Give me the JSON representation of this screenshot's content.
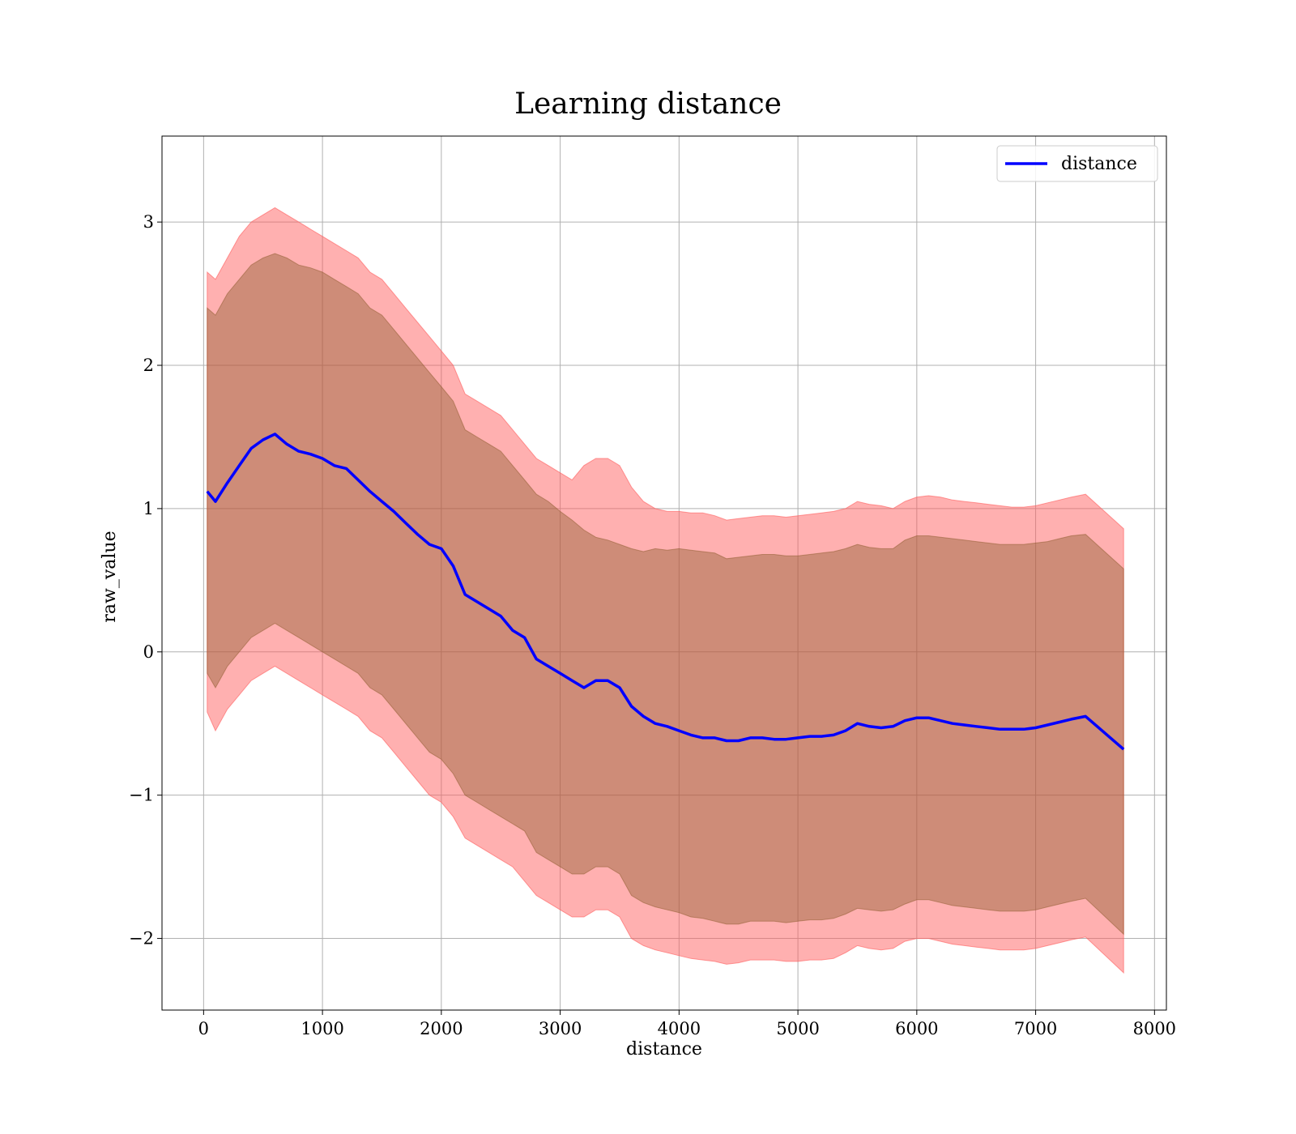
{
  "chart_data": {
    "type": "line",
    "title": "Learning distance",
    "xlabel": "distance",
    "ylabel": "raw_value",
    "xlim": [
      -350,
      8100
    ],
    "ylim": [
      -2.5,
      3.6
    ],
    "xticks": [
      0,
      1000,
      2000,
      3000,
      4000,
      5000,
      6000,
      7000,
      8000
    ],
    "xtick_labels": [
      "0",
      "1000",
      "2000",
      "3000",
      "4000",
      "5000",
      "6000",
      "7000",
      "8000"
    ],
    "yticks": [
      -2,
      -1,
      0,
      1,
      2,
      3
    ],
    "ytick_labels": [
      "−2",
      "−1",
      "0",
      "1",
      "2",
      "3"
    ],
    "grid": true,
    "legend": {
      "placement": "top-right",
      "entries": [
        "distance"
      ]
    },
    "colors": {
      "line": "#0000ff",
      "outer_band": "#ff5a5a",
      "inner_band": "#8b5a2b",
      "grid": "#b0b0b0"
    },
    "series": [
      {
        "name": "distance",
        "x": [
          30,
          100,
          200,
          300,
          400,
          500,
          600,
          700,
          800,
          900,
          1000,
          1100,
          1200,
          1300,
          1400,
          1500,
          1600,
          1700,
          1800,
          1900,
          2000,
          2100,
          2200,
          2300,
          2400,
          2500,
          2600,
          2700,
          2800,
          2900,
          3000,
          3100,
          3200,
          3300,
          3400,
          3500,
          3600,
          3700,
          3800,
          3900,
          4000,
          4100,
          4200,
          4300,
          4400,
          4500,
          4600,
          4700,
          4800,
          4900,
          5000,
          5100,
          5200,
          5300,
          5400,
          5500,
          5600,
          5700,
          5800,
          5900,
          6000,
          6100,
          6200,
          6300,
          6400,
          6500,
          6600,
          6700,
          6800,
          6900,
          7000,
          7100,
          7200,
          7300,
          7420,
          7740
        ],
        "y": [
          1.12,
          1.05,
          1.18,
          1.3,
          1.42,
          1.48,
          1.52,
          1.45,
          1.4,
          1.38,
          1.35,
          1.3,
          1.28,
          1.2,
          1.12,
          1.05,
          0.98,
          0.9,
          0.82,
          0.75,
          0.72,
          0.6,
          0.4,
          0.35,
          0.3,
          0.25,
          0.15,
          0.1,
          -0.05,
          -0.1,
          -0.15,
          -0.2,
          -0.25,
          -0.2,
          -0.2,
          -0.25,
          -0.38,
          -0.45,
          -0.5,
          -0.52,
          -0.55,
          -0.58,
          -0.6,
          -0.6,
          -0.62,
          -0.62,
          -0.6,
          -0.6,
          -0.61,
          -0.61,
          -0.6,
          -0.59,
          -0.59,
          -0.58,
          -0.55,
          -0.5,
          -0.52,
          -0.53,
          -0.52,
          -0.48,
          -0.46,
          -0.46,
          -0.48,
          -0.5,
          -0.51,
          -0.52,
          -0.53,
          -0.54,
          -0.54,
          -0.54,
          -0.53,
          -0.51,
          -0.49,
          -0.47,
          -0.45,
          -0.68
        ],
        "outer_upper": [
          2.65,
          2.6,
          2.75,
          2.9,
          3.0,
          3.05,
          3.1,
          3.05,
          3.0,
          2.95,
          2.9,
          2.85,
          2.8,
          2.75,
          2.65,
          2.6,
          2.5,
          2.4,
          2.3,
          2.2,
          2.1,
          2.0,
          1.8,
          1.75,
          1.7,
          1.65,
          1.55,
          1.45,
          1.35,
          1.3,
          1.25,
          1.2,
          1.3,
          1.35,
          1.35,
          1.3,
          1.15,
          1.05,
          1.0,
          0.98,
          0.98,
          0.97,
          0.97,
          0.95,
          0.92,
          0.93,
          0.94,
          0.95,
          0.95,
          0.94,
          0.95,
          0.96,
          0.97,
          0.98,
          1.0,
          1.05,
          1.03,
          1.02,
          1.0,
          1.05,
          1.08,
          1.09,
          1.08,
          1.06,
          1.05,
          1.04,
          1.03,
          1.02,
          1.01,
          1.01,
          1.02,
          1.04,
          1.06,
          1.08,
          1.1,
          0.86
        ],
        "inner_upper": [
          2.4,
          2.35,
          2.5,
          2.6,
          2.7,
          2.75,
          2.78,
          2.75,
          2.7,
          2.68,
          2.65,
          2.6,
          2.55,
          2.5,
          2.4,
          2.35,
          2.25,
          2.15,
          2.05,
          1.95,
          1.85,
          1.75,
          1.55,
          1.5,
          1.45,
          1.4,
          1.3,
          1.2,
          1.1,
          1.05,
          0.98,
          0.92,
          0.85,
          0.8,
          0.78,
          0.75,
          0.72,
          0.7,
          0.72,
          0.71,
          0.72,
          0.71,
          0.7,
          0.69,
          0.65,
          0.66,
          0.67,
          0.68,
          0.68,
          0.67,
          0.67,
          0.68,
          0.69,
          0.7,
          0.72,
          0.75,
          0.73,
          0.72,
          0.72,
          0.78,
          0.81,
          0.81,
          0.8,
          0.79,
          0.78,
          0.77,
          0.76,
          0.75,
          0.75,
          0.75,
          0.76,
          0.77,
          0.79,
          0.81,
          0.82,
          0.58
        ],
        "inner_lower": [
          -0.15,
          -0.25,
          -0.1,
          0.0,
          0.1,
          0.15,
          0.2,
          0.15,
          0.1,
          0.05,
          0.0,
          -0.05,
          -0.1,
          -0.15,
          -0.25,
          -0.3,
          -0.4,
          -0.5,
          -0.6,
          -0.7,
          -0.75,
          -0.85,
          -1.0,
          -1.05,
          -1.1,
          -1.15,
          -1.2,
          -1.25,
          -1.4,
          -1.45,
          -1.5,
          -1.55,
          -1.55,
          -1.5,
          -1.5,
          -1.55,
          -1.7,
          -1.75,
          -1.78,
          -1.8,
          -1.82,
          -1.85,
          -1.86,
          -1.88,
          -1.9,
          -1.9,
          -1.88,
          -1.88,
          -1.88,
          -1.89,
          -1.88,
          -1.87,
          -1.87,
          -1.86,
          -1.83,
          -1.79,
          -1.8,
          -1.81,
          -1.8,
          -1.76,
          -1.73,
          -1.73,
          -1.75,
          -1.77,
          -1.78,
          -1.79,
          -1.8,
          -1.81,
          -1.81,
          -1.81,
          -1.8,
          -1.78,
          -1.76,
          -1.74,
          -1.72,
          -1.97
        ],
        "outer_lower": [
          -0.42,
          -0.55,
          -0.4,
          -0.3,
          -0.2,
          -0.15,
          -0.1,
          -0.15,
          -0.2,
          -0.25,
          -0.3,
          -0.35,
          -0.4,
          -0.45,
          -0.55,
          -0.6,
          -0.7,
          -0.8,
          -0.9,
          -1.0,
          -1.05,
          -1.15,
          -1.3,
          -1.35,
          -1.4,
          -1.45,
          -1.5,
          -1.6,
          -1.7,
          -1.75,
          -1.8,
          -1.85,
          -1.85,
          -1.8,
          -1.8,
          -1.85,
          -2.0,
          -2.05,
          -2.08,
          -2.1,
          -2.12,
          -2.14,
          -2.15,
          -2.16,
          -2.18,
          -2.17,
          -2.15,
          -2.15,
          -2.15,
          -2.16,
          -2.16,
          -2.15,
          -2.15,
          -2.14,
          -2.1,
          -2.05,
          -2.07,
          -2.08,
          -2.07,
          -2.02,
          -2.0,
          -2.0,
          -2.02,
          -2.04,
          -2.05,
          -2.06,
          -2.07,
          -2.08,
          -2.08,
          -2.08,
          -2.07,
          -2.05,
          -2.03,
          -2.01,
          -1.99,
          -2.24
        ]
      }
    ]
  }
}
